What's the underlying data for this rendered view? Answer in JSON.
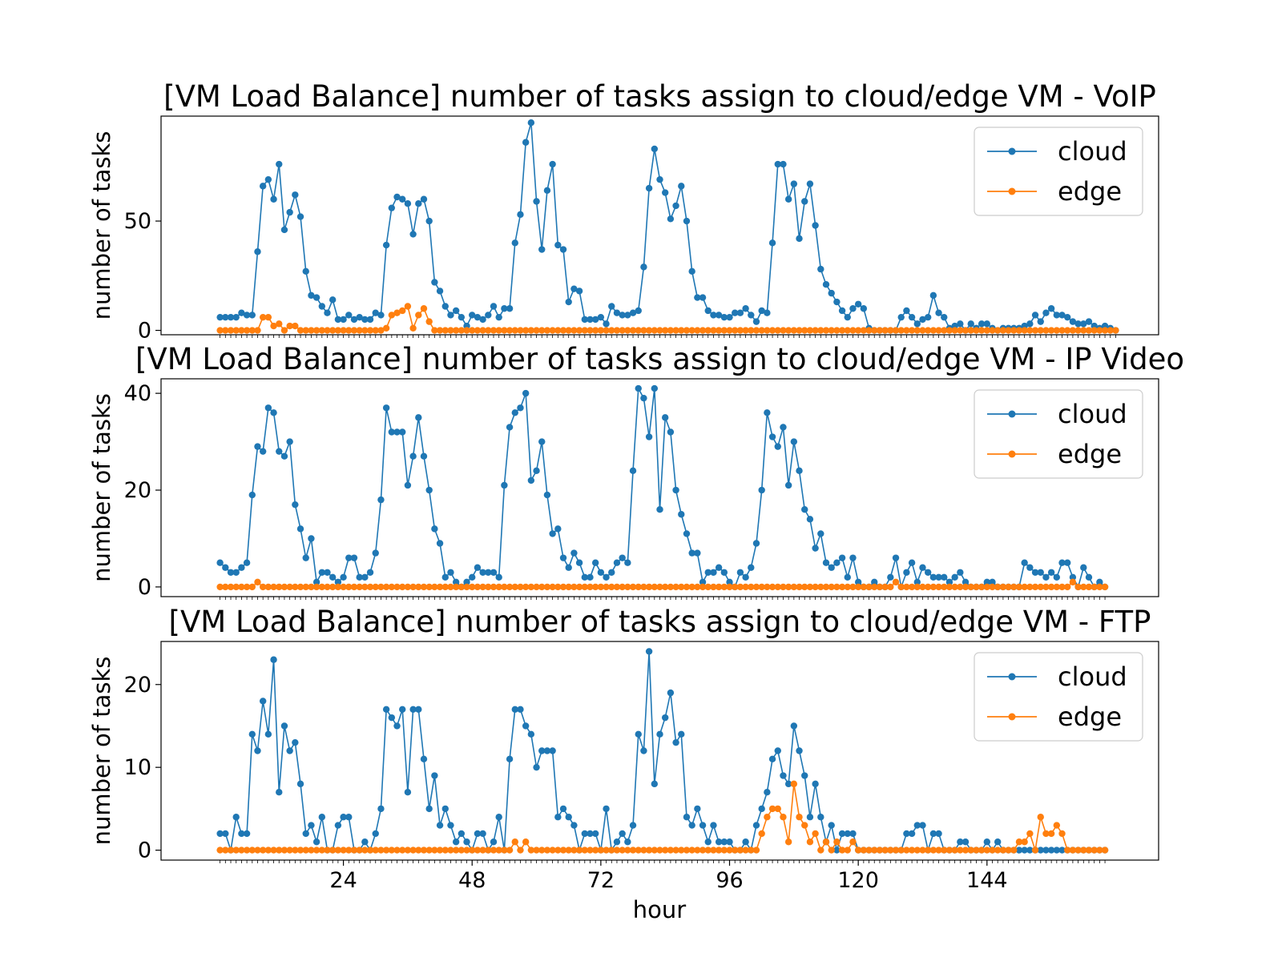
{
  "figure": {
    "xlabel": "hour",
    "colors": {
      "cloud": "#1f77b4",
      "edge": "#ff7f0e"
    }
  },
  "chart_data": [
    {
      "type": "line",
      "title": "[VM Load Balance] number of tasks assign to cloud/edge VM - VoIP",
      "xlabel": "",
      "ylabel": "number of tasks",
      "yticks": [
        0,
        50
      ],
      "ylim": [
        -2,
        98
      ],
      "xlim": [
        -10,
        176
      ],
      "legend": "top-right",
      "series": [
        {
          "name": "cloud",
          "color": "#1f77b4",
          "values": [
            6,
            6,
            6,
            6,
            8,
            7,
            7,
            36,
            66,
            69,
            60,
            76,
            46,
            54,
            62,
            52,
            27,
            16,
            15,
            11,
            8,
            14,
            5,
            5,
            7,
            5,
            6,
            5,
            5,
            8,
            7,
            39,
            56,
            61,
            60,
            58,
            44,
            58,
            60,
            50,
            22,
            18,
            11,
            7,
            9,
            6,
            2,
            7,
            6,
            5,
            7,
            11,
            6,
            10,
            10,
            40,
            53,
            86,
            95,
            59,
            37,
            64,
            76,
            39,
            37,
            13,
            19,
            18,
            5,
            5,
            5,
            6,
            3,
            11,
            8,
            7,
            7,
            8,
            9,
            29,
            65,
            83,
            69,
            63,
            51,
            57,
            66,
            50,
            27,
            15,
            15,
            9,
            7,
            7,
            6,
            6,
            8,
            8,
            10,
            7,
            4,
            9,
            8,
            40,
            76,
            76,
            60,
            67,
            42,
            59,
            67,
            48,
            28,
            21,
            17,
            13,
            9,
            6,
            10,
            12,
            10,
            1,
            0,
            0,
            0,
            0,
            0,
            6,
            9,
            6,
            3,
            5,
            6,
            16,
            8,
            6,
            1,
            2,
            3,
            0,
            3,
            1,
            3,
            3,
            1,
            0,
            1,
            1,
            1,
            1,
            2,
            3,
            7,
            4,
            8,
            10,
            7,
            7,
            6,
            4,
            3,
            3,
            4,
            2,
            1,
            2,
            1,
            0
          ]
        },
        {
          "name": "edge",
          "color": "#ff7f0e",
          "values": [
            0,
            0,
            0,
            0,
            0,
            0,
            0,
            0,
            6,
            6,
            2,
            3,
            0,
            2,
            2,
            0,
            0,
            0,
            0,
            0,
            0,
            0,
            0,
            0,
            0,
            0,
            0,
            0,
            0,
            0,
            0,
            1,
            7,
            8,
            9,
            11,
            1,
            7,
            10,
            4,
            0,
            0,
            0,
            0,
            0,
            0,
            0,
            0,
            0,
            0,
            0,
            0,
            0,
            0,
            0,
            0,
            0,
            0,
            0,
            0,
            0,
            0,
            0,
            0,
            0,
            0,
            0,
            0,
            0,
            0,
            0,
            0,
            0,
            0,
            0,
            0,
            0,
            0,
            0,
            0,
            0,
            0,
            0,
            0,
            0,
            0,
            0,
            0,
            0,
            0,
            0,
            0,
            0,
            0,
            0,
            0,
            0,
            0,
            0,
            0,
            0,
            0,
            0,
            0,
            0,
            0,
            0,
            0,
            0,
            0,
            0,
            0,
            0,
            0,
            0,
            0,
            0,
            0,
            0,
            0,
            0,
            0,
            0,
            0,
            0,
            0,
            0,
            0,
            0,
            0,
            0,
            0,
            0,
            0,
            0,
            0,
            0,
            0,
            0,
            0,
            0,
            0,
            0,
            0,
            0,
            0,
            0,
            0,
            0,
            0,
            0,
            0,
            0,
            0,
            0,
            0,
            0,
            0,
            0,
            0,
            0,
            0,
            0,
            0,
            0,
            0,
            0,
            0
          ]
        }
      ]
    },
    {
      "type": "line",
      "title": "[VM Load Balance] number of tasks assign to cloud/edge VM - IP Video",
      "xlabel": "",
      "ylabel": "number of tasks",
      "yticks": [
        0,
        20,
        40
      ],
      "ylim": [
        -2,
        43
      ],
      "xlim": [
        -10,
        176
      ],
      "legend": "top-right",
      "series": [
        {
          "name": "cloud",
          "color": "#1f77b4",
          "values": [
            5,
            4,
            3,
            3,
            4,
            5,
            19,
            29,
            28,
            37,
            36,
            28,
            27,
            30,
            17,
            12,
            6,
            10,
            1,
            3,
            3,
            2,
            1,
            2,
            6,
            6,
            2,
            2,
            3,
            7,
            18,
            37,
            32,
            32,
            32,
            21,
            27,
            35,
            27,
            20,
            12,
            9,
            2,
            3,
            1,
            0,
            1,
            2,
            4,
            3,
            3,
            3,
            2,
            21,
            33,
            36,
            37,
            40,
            22,
            24,
            30,
            19,
            11,
            12,
            6,
            4,
            7,
            5,
            2,
            2,
            5,
            3,
            2,
            3,
            5,
            6,
            5,
            24,
            41,
            39,
            31,
            41,
            16,
            35,
            32,
            20,
            15,
            11,
            7,
            7,
            1,
            3,
            3,
            4,
            3,
            1,
            0,
            3,
            2,
            4,
            9,
            20,
            36,
            31,
            29,
            33,
            21,
            30,
            24,
            16,
            14,
            8,
            11,
            5,
            4,
            5,
            6,
            2,
            6,
            1,
            0,
            0,
            1,
            0,
            0,
            2,
            6,
            0,
            3,
            5,
            1,
            4,
            3,
            2,
            2,
            2,
            1,
            2,
            3,
            1,
            0,
            0,
            0,
            1,
            1,
            0,
            0,
            0,
            0,
            0,
            5,
            4,
            3,
            3,
            2,
            3,
            2,
            5,
            5,
            2,
            0,
            4,
            2,
            0,
            1,
            0
          ]
        },
        {
          "name": "edge",
          "color": "#ff7f0e",
          "values": [
            0,
            0,
            0,
            0,
            0,
            0,
            0,
            1,
            0,
            0,
            0,
            0,
            0,
            0,
            0,
            0,
            0,
            0,
            0,
            0,
            0,
            0,
            0,
            0,
            0,
            0,
            0,
            0,
            0,
            0,
            0,
            0,
            0,
            0,
            0,
            0,
            0,
            0,
            0,
            0,
            0,
            0,
            0,
            0,
            0,
            0,
            0,
            0,
            0,
            0,
            0,
            0,
            0,
            0,
            0,
            0,
            0,
            0,
            0,
            0,
            0,
            0,
            0,
            0,
            0,
            0,
            0,
            0,
            0,
            0,
            0,
            0,
            0,
            0,
            0,
            0,
            0,
            0,
            0,
            0,
            0,
            0,
            0,
            0,
            0,
            0,
            0,
            0,
            0,
            0,
            0,
            0,
            0,
            0,
            0,
            0,
            0,
            0,
            0,
            0,
            0,
            0,
            0,
            0,
            0,
            0,
            0,
            0,
            0,
            0,
            0,
            0,
            0,
            0,
            0,
            0,
            0,
            0,
            0,
            0,
            0,
            0,
            0,
            0,
            0,
            0,
            1,
            0,
            0,
            0,
            0,
            0,
            0,
            0,
            0,
            0,
            0,
            0,
            0,
            0,
            0,
            0,
            0,
            0,
            0,
            0,
            0,
            0,
            0,
            0,
            0,
            0,
            0,
            0,
            0,
            0,
            0,
            0,
            0,
            1,
            0,
            0,
            0,
            0,
            0,
            0
          ]
        }
      ]
    },
    {
      "type": "line",
      "title": "[VM Load Balance] number of tasks assign to cloud/edge VM - FTP",
      "xlabel": "hour",
      "ylabel": "number of tasks",
      "yticks": [
        0,
        10,
        20
      ],
      "ylim": [
        -1.2,
        25.2
      ],
      "xlim": [
        -10,
        176
      ],
      "xticks": [
        24,
        48,
        72,
        96,
        120,
        144
      ],
      "legend": "top-right",
      "series": [
        {
          "name": "cloud",
          "color": "#1f77b4",
          "values": [
            2,
            2,
            0,
            4,
            2,
            2,
            14,
            12,
            18,
            14,
            23,
            7,
            15,
            12,
            13,
            8,
            2,
            3,
            1,
            4,
            0,
            0,
            3,
            4,
            4,
            0,
            0,
            1,
            0,
            2,
            5,
            17,
            16,
            15,
            17,
            7,
            17,
            17,
            11,
            5,
            9,
            3,
            5,
            3,
            1,
            2,
            1,
            0,
            2,
            2,
            0,
            1,
            4,
            0,
            11,
            17,
            17,
            15,
            14,
            10,
            12,
            12,
            12,
            4,
            5,
            4,
            3,
            0,
            2,
            2,
            2,
            0,
            5,
            0,
            1,
            2,
            1,
            3,
            14,
            12,
            24,
            8,
            14,
            16,
            19,
            13,
            14,
            4,
            3,
            5,
            3,
            1,
            3,
            1,
            1,
            1,
            0,
            0,
            1,
            0,
            3,
            5,
            7,
            11,
            12,
            9,
            8,
            15,
            12,
            9,
            4,
            8,
            4,
            1,
            3,
            0,
            2,
            2,
            2,
            0,
            0,
            0,
            0,
            0,
            0,
            0,
            0,
            0,
            2,
            2,
            3,
            3,
            0,
            2,
            2,
            0,
            0,
            0,
            1,
            1,
            0,
            0,
            0,
            1,
            0,
            1,
            0,
            0,
            0,
            0,
            0,
            0,
            0,
            0,
            0,
            0,
            0,
            0,
            0,
            0,
            0,
            0,
            0,
            0,
            0,
            0
          ]
        },
        {
          "name": "edge",
          "color": "#ff7f0e",
          "values": [
            0,
            0,
            0,
            0,
            0,
            0,
            0,
            0,
            0,
            0,
            0,
            0,
            0,
            0,
            0,
            0,
            0,
            0,
            0,
            0,
            0,
            0,
            0,
            0,
            0,
            0,
            0,
            0,
            0,
            0,
            0,
            0,
            0,
            0,
            0,
            0,
            0,
            0,
            0,
            0,
            0,
            0,
            0,
            0,
            0,
            0,
            0,
            0,
            0,
            0,
            0,
            0,
            0,
            0,
            0,
            1,
            0,
            1,
            0,
            0,
            0,
            0,
            0,
            0,
            0,
            0,
            0,
            0,
            0,
            0,
            0,
            0,
            0,
            0,
            0,
            0,
            0,
            0,
            0,
            0,
            0,
            0,
            0,
            0,
            0,
            0,
            0,
            0,
            0,
            0,
            0,
            0,
            0,
            0,
            0,
            0,
            0,
            0,
            0,
            0,
            0,
            2,
            4,
            5,
            5,
            4,
            1,
            8,
            4,
            3,
            1,
            2,
            0,
            1,
            0,
            1,
            0,
            0,
            1,
            0,
            0,
            0,
            0,
            0,
            0,
            0,
            0,
            0,
            0,
            0,
            0,
            0,
            0,
            0,
            0,
            0,
            0,
            0,
            0,
            0,
            0,
            0,
            0,
            0,
            0,
            0,
            0,
            0,
            0,
            1,
            1,
            2,
            0,
            4,
            2,
            2,
            3,
            2,
            0,
            0,
            0,
            0,
            0,
            0,
            0,
            0
          ]
        }
      ]
    }
  ]
}
